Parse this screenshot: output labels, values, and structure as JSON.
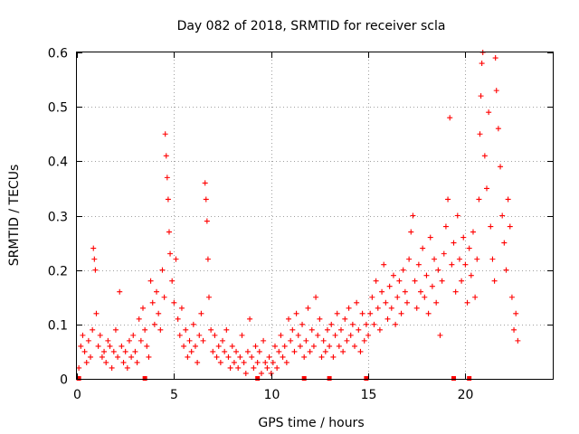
{
  "chart_data": {
    "type": "scatter",
    "title": "Day 082 of 2018, SRMTID for receiver scla",
    "xlabel": "GPS time / hours",
    "ylabel": "SRMTID / TECUs",
    "xlim": [
      0,
      24.5
    ],
    "ylim": [
      0,
      0.6
    ],
    "xticks": [
      0,
      5,
      10,
      15,
      20
    ],
    "xtick_labels": [
      "0",
      "5",
      "10",
      "15",
      "20"
    ],
    "yticks": [
      0,
      0.1,
      0.2,
      0.3,
      0.4,
      0.5,
      0.6
    ],
    "ytick_labels": [
      "0",
      "0.1",
      "0.2",
      "0.3",
      "0.4",
      "0.5",
      "0.6"
    ],
    "grid": true,
    "marker": "+",
    "color": "#ff0000",
    "series": [
      {
        "name": "scla",
        "points": [
          [
            0.1,
            0.02
          ],
          [
            0.2,
            0.06
          ],
          [
            0.3,
            0.08
          ],
          [
            0.4,
            0.05
          ],
          [
            0.5,
            0.03
          ],
          [
            0.6,
            0.07
          ],
          [
            0.7,
            0.04
          ],
          [
            0.8,
            0.09
          ],
          [
            0.85,
            0.24
          ],
          [
            0.9,
            0.22
          ],
          [
            0.95,
            0.2
          ],
          [
            1.0,
            0.12
          ],
          [
            1.1,
            0.06
          ],
          [
            1.2,
            0.08
          ],
          [
            1.3,
            0.04
          ],
          [
            1.4,
            0.05
          ],
          [
            1.5,
            0.03
          ],
          [
            1.6,
            0.07
          ],
          [
            1.7,
            0.06
          ],
          [
            1.8,
            0.02
          ],
          [
            1.9,
            0.05
          ],
          [
            2.0,
            0.09
          ],
          [
            2.1,
            0.04
          ],
          [
            2.2,
            0.16
          ],
          [
            2.3,
            0.06
          ],
          [
            2.4,
            0.03
          ],
          [
            2.5,
            0.05
          ],
          [
            2.6,
            0.02
          ],
          [
            2.7,
            0.07
          ],
          [
            2.8,
            0.04
          ],
          [
            2.9,
            0.08
          ],
          [
            3.0,
            0.05
          ],
          [
            3.1,
            0.03
          ],
          [
            3.2,
            0.11
          ],
          [
            3.3,
            0.07
          ],
          [
            3.4,
            0.13
          ],
          [
            3.5,
            0.09
          ],
          [
            3.6,
            0.06
          ],
          [
            3.7,
            0.04
          ],
          [
            3.8,
            0.18
          ],
          [
            3.9,
            0.14
          ],
          [
            4.0,
            0.1
          ],
          [
            4.1,
            0.16
          ],
          [
            4.2,
            0.12
          ],
          [
            4.3,
            0.09
          ],
          [
            4.4,
            0.2
          ],
          [
            4.5,
            0.15
          ],
          [
            4.55,
            0.45
          ],
          [
            4.6,
            0.41
          ],
          [
            4.65,
            0.37
          ],
          [
            4.7,
            0.33
          ],
          [
            4.75,
            0.27
          ],
          [
            4.8,
            0.23
          ],
          [
            4.9,
            0.18
          ],
          [
            5.0,
            0.14
          ],
          [
            5.1,
            0.22
          ],
          [
            5.2,
            0.11
          ],
          [
            5.3,
            0.08
          ],
          [
            5.4,
            0.13
          ],
          [
            5.5,
            0.06
          ],
          [
            5.6,
            0.09
          ],
          [
            5.7,
            0.04
          ],
          [
            5.8,
            0.07
          ],
          [
            5.9,
            0.05
          ],
          [
            6.0,
            0.1
          ],
          [
            6.1,
            0.06
          ],
          [
            6.2,
            0.03
          ],
          [
            6.3,
            0.08
          ],
          [
            6.4,
            0.12
          ],
          [
            6.5,
            0.07
          ],
          [
            6.6,
            0.36
          ],
          [
            6.65,
            0.33
          ],
          [
            6.7,
            0.29
          ],
          [
            6.75,
            0.22
          ],
          [
            6.8,
            0.15
          ],
          [
            6.9,
            0.09
          ],
          [
            7.0,
            0.05
          ],
          [
            7.1,
            0.08
          ],
          [
            7.2,
            0.04
          ],
          [
            7.3,
            0.06
          ],
          [
            7.4,
            0.03
          ],
          [
            7.5,
            0.07
          ],
          [
            7.6,
            0.05
          ],
          [
            7.7,
            0.09
          ],
          [
            7.8,
            0.04
          ],
          [
            7.9,
            0.02
          ],
          [
            8.0,
            0.06
          ],
          [
            8.1,
            0.03
          ],
          [
            8.2,
            0.05
          ],
          [
            8.3,
            0.02
          ],
          [
            8.4,
            0.04
          ],
          [
            8.5,
            0.08
          ],
          [
            8.6,
            0.03
          ],
          [
            8.7,
            0.01
          ],
          [
            8.8,
            0.05
          ],
          [
            8.9,
            0.11
          ],
          [
            9.0,
            0.04
          ],
          [
            9.1,
            0.02
          ],
          [
            9.2,
            0.06
          ],
          [
            9.3,
            0.03
          ],
          [
            9.4,
            0.05
          ],
          [
            9.5,
            0.01
          ],
          [
            9.6,
            0.07
          ],
          [
            9.7,
            0.03
          ],
          [
            9.8,
            0.02
          ],
          [
            9.9,
            0.04
          ],
          [
            10.0,
            0.01
          ],
          [
            10.1,
            0.03
          ],
          [
            10.2,
            0.06
          ],
          [
            10.3,
            0.02
          ],
          [
            10.4,
            0.05
          ],
          [
            10.5,
            0.08
          ],
          [
            10.6,
            0.04
          ],
          [
            10.7,
            0.06
          ],
          [
            10.8,
            0.03
          ],
          [
            10.9,
            0.11
          ],
          [
            11.0,
            0.07
          ],
          [
            11.1,
            0.09
          ],
          [
            11.2,
            0.05
          ],
          [
            11.3,
            0.12
          ],
          [
            11.4,
            0.08
          ],
          [
            11.5,
            0.06
          ],
          [
            11.6,
            0.1
          ],
          [
            11.7,
            0.04
          ],
          [
            11.8,
            0.07
          ],
          [
            11.9,
            0.13
          ],
          [
            12.0,
            0.05
          ],
          [
            12.1,
            0.09
          ],
          [
            12.2,
            0.06
          ],
          [
            12.3,
            0.15
          ],
          [
            12.4,
            0.08
          ],
          [
            12.5,
            0.11
          ],
          [
            12.6,
            0.04
          ],
          [
            12.7,
            0.07
          ],
          [
            12.8,
            0.05
          ],
          [
            12.9,
            0.09
          ],
          [
            13.0,
            0.06
          ],
          [
            13.1,
            0.1
          ],
          [
            13.2,
            0.04
          ],
          [
            13.3,
            0.08
          ],
          [
            13.4,
            0.12
          ],
          [
            13.5,
            0.06
          ],
          [
            13.6,
            0.09
          ],
          [
            13.7,
            0.05
          ],
          [
            13.8,
            0.11
          ],
          [
            13.9,
            0.07
          ],
          [
            14.0,
            0.13
          ],
          [
            14.1,
            0.08
          ],
          [
            14.2,
            0.1
          ],
          [
            14.3,
            0.06
          ],
          [
            14.4,
            0.14
          ],
          [
            14.5,
            0.09
          ],
          [
            14.6,
            0.05
          ],
          [
            14.7,
            0.12
          ],
          [
            14.8,
            0.07
          ],
          [
            14.9,
            0.1
          ],
          [
            15.0,
            0.08
          ],
          [
            15.1,
            0.12
          ],
          [
            15.2,
            0.15
          ],
          [
            15.3,
            0.1
          ],
          [
            15.4,
            0.18
          ],
          [
            15.5,
            0.13
          ],
          [
            15.6,
            0.09
          ],
          [
            15.7,
            0.16
          ],
          [
            15.8,
            0.21
          ],
          [
            15.9,
            0.14
          ],
          [
            16.0,
            0.11
          ],
          [
            16.1,
            0.17
          ],
          [
            16.2,
            0.13
          ],
          [
            16.3,
            0.19
          ],
          [
            16.4,
            0.1
          ],
          [
            16.5,
            0.15
          ],
          [
            16.6,
            0.18
          ],
          [
            16.7,
            0.12
          ],
          [
            16.8,
            0.2
          ],
          [
            16.9,
            0.16
          ],
          [
            17.0,
            0.14
          ],
          [
            17.1,
            0.22
          ],
          [
            17.2,
            0.27
          ],
          [
            17.3,
            0.3
          ],
          [
            17.4,
            0.18
          ],
          [
            17.5,
            0.13
          ],
          [
            17.6,
            0.21
          ],
          [
            17.7,
            0.16
          ],
          [
            17.8,
            0.24
          ],
          [
            17.9,
            0.15
          ],
          [
            18.0,
            0.19
          ],
          [
            18.1,
            0.12
          ],
          [
            18.2,
            0.26
          ],
          [
            18.3,
            0.17
          ],
          [
            18.4,
            0.22
          ],
          [
            18.5,
            0.14
          ],
          [
            18.6,
            0.2
          ],
          [
            18.7,
            0.08
          ],
          [
            18.8,
            0.18
          ],
          [
            18.9,
            0.23
          ],
          [
            19.0,
            0.28
          ],
          [
            19.1,
            0.33
          ],
          [
            19.2,
            0.48
          ],
          [
            19.3,
            0.21
          ],
          [
            19.4,
            0.25
          ],
          [
            19.5,
            0.16
          ],
          [
            19.6,
            0.3
          ],
          [
            19.7,
            0.22
          ],
          [
            19.8,
            0.18
          ],
          [
            19.9,
            0.26
          ],
          [
            20.0,
            0.21
          ],
          [
            20.1,
            0.14
          ],
          [
            20.2,
            0.24
          ],
          [
            20.3,
            0.19
          ],
          [
            20.4,
            0.27
          ],
          [
            20.5,
            0.15
          ],
          [
            20.6,
            0.22
          ],
          [
            20.7,
            0.33
          ],
          [
            20.75,
            0.45
          ],
          [
            20.8,
            0.52
          ],
          [
            20.85,
            0.58
          ],
          [
            20.9,
            0.6
          ],
          [
            21.0,
            0.41
          ],
          [
            21.1,
            0.35
          ],
          [
            21.2,
            0.49
          ],
          [
            21.3,
            0.28
          ],
          [
            21.4,
            0.22
          ],
          [
            21.5,
            0.18
          ],
          [
            21.55,
            0.59
          ],
          [
            21.6,
            0.53
          ],
          [
            21.7,
            0.46
          ],
          [
            21.8,
            0.39
          ],
          [
            21.9,
            0.3
          ],
          [
            22.0,
            0.25
          ],
          [
            22.1,
            0.2
          ],
          [
            22.2,
            0.33
          ],
          [
            22.3,
            0.28
          ],
          [
            22.4,
            0.15
          ],
          [
            22.5,
            0.09
          ],
          [
            22.6,
            0.12
          ],
          [
            22.7,
            0.07
          ]
        ]
      }
    ],
    "bottom_markers": [
      0.1,
      3.5,
      9.3,
      11.7,
      13.0,
      14.9,
      19.4,
      20.2
    ]
  }
}
